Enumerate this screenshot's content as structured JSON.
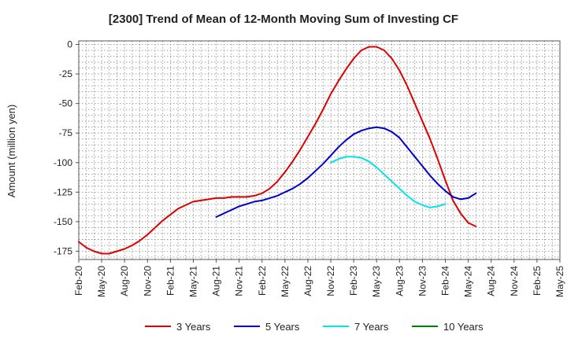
{
  "chart_data": {
    "type": "line",
    "title": "[2300]  Trend of Mean of 12-Month Moving Sum of Investing CF",
    "xlabel": "",
    "ylabel": "Amount (million yen)",
    "ylim": [
      -182,
      3
    ],
    "yticks": [
      0,
      -25,
      -50,
      -75,
      -100,
      -125,
      -150,
      -175
    ],
    "ytick_labels": [
      "0",
      "-25",
      "-50",
      "-75",
      "-100",
      "-125",
      "-150",
      "-175"
    ],
    "x_start_month_index": 0,
    "x_end_month_index": 63,
    "xtick_month_index": [
      0,
      3,
      6,
      9,
      12,
      15,
      18,
      21,
      24,
      27,
      30,
      33,
      36,
      39,
      42,
      45,
      48,
      51,
      54,
      57,
      60,
      63
    ],
    "xtick_labels": [
      "Feb-20",
      "May-20",
      "Aug-20",
      "Nov-20",
      "Feb-21",
      "May-21",
      "Aug-21",
      "Nov-21",
      "Feb-22",
      "May-22",
      "Aug-22",
      "Nov-22",
      "Feb-23",
      "May-23",
      "Aug-23",
      "Nov-23",
      "Feb-24",
      "May-24",
      "Aug-24",
      "Nov-24",
      "Feb-25",
      "May-25"
    ],
    "grid": true,
    "legend_position": "bottom",
    "series": [
      {
        "name": "3 Years",
        "color": "#dd0000",
        "points": [
          [
            0,
            -167
          ],
          [
            1,
            -172
          ],
          [
            2,
            -175
          ],
          [
            3,
            -177
          ],
          [
            4,
            -177
          ],
          [
            5,
            -175
          ],
          [
            6,
            -173
          ],
          [
            7,
            -170
          ],
          [
            8,
            -166
          ],
          [
            9,
            -161
          ],
          [
            10,
            -155
          ],
          [
            11,
            -149
          ],
          [
            12,
            -144
          ],
          [
            13,
            -139
          ],
          [
            14,
            -136
          ],
          [
            15,
            -133
          ],
          [
            16,
            -132
          ],
          [
            17,
            -131
          ],
          [
            18,
            -130
          ],
          [
            19,
            -130
          ],
          [
            20,
            -129
          ],
          [
            21,
            -129
          ],
          [
            22,
            -129
          ],
          [
            23,
            -128
          ],
          [
            24,
            -126
          ],
          [
            25,
            -122
          ],
          [
            26,
            -116
          ],
          [
            27,
            -108
          ],
          [
            28,
            -99
          ],
          [
            29,
            -89
          ],
          [
            30,
            -78
          ],
          [
            31,
            -67
          ],
          [
            32,
            -55
          ],
          [
            33,
            -42
          ],
          [
            34,
            -31
          ],
          [
            35,
            -21
          ],
          [
            36,
            -12
          ],
          [
            37,
            -5
          ],
          [
            38,
            -2
          ],
          [
            39,
            -2
          ],
          [
            40,
            -5
          ],
          [
            41,
            -12
          ],
          [
            42,
            -22
          ],
          [
            43,
            -35
          ],
          [
            44,
            -50
          ],
          [
            45,
            -65
          ],
          [
            46,
            -80
          ],
          [
            47,
            -97
          ],
          [
            48,
            -115
          ],
          [
            49,
            -132
          ],
          [
            50,
            -143
          ],
          [
            51,
            -151
          ],
          [
            52,
            -154
          ]
        ]
      },
      {
        "name": "5 Years",
        "color": "#0000cc",
        "points": [
          [
            18,
            -146
          ],
          [
            19,
            -143
          ],
          [
            20,
            -140
          ],
          [
            21,
            -137
          ],
          [
            22,
            -135
          ],
          [
            23,
            -133
          ],
          [
            24,
            -132
          ],
          [
            25,
            -130
          ],
          [
            26,
            -128
          ],
          [
            27,
            -125
          ],
          [
            28,
            -122
          ],
          [
            29,
            -118
          ],
          [
            30,
            -113
          ],
          [
            31,
            -107
          ],
          [
            32,
            -101
          ],
          [
            33,
            -94
          ],
          [
            34,
            -87
          ],
          [
            35,
            -81
          ],
          [
            36,
            -76
          ],
          [
            37,
            -73
          ],
          [
            38,
            -71
          ],
          [
            39,
            -70
          ],
          [
            40,
            -71
          ],
          [
            41,
            -74
          ],
          [
            42,
            -79
          ],
          [
            43,
            -87
          ],
          [
            44,
            -95
          ],
          [
            45,
            -103
          ],
          [
            46,
            -111
          ],
          [
            47,
            -118
          ],
          [
            48,
            -124
          ],
          [
            49,
            -129
          ],
          [
            50,
            -131
          ],
          [
            51,
            -130
          ],
          [
            52,
            -126
          ]
        ]
      },
      {
        "name": "7 Years",
        "color": "#00e5e5",
        "points": [
          [
            33,
            -100
          ],
          [
            34,
            -97
          ],
          [
            35,
            -95
          ],
          [
            36,
            -95
          ],
          [
            37,
            -96
          ],
          [
            38,
            -99
          ],
          [
            39,
            -104
          ],
          [
            40,
            -110
          ],
          [
            41,
            -116
          ],
          [
            42,
            -122
          ],
          [
            43,
            -128
          ],
          [
            44,
            -133
          ],
          [
            45,
            -136
          ],
          [
            46,
            -138
          ],
          [
            47,
            -137
          ],
          [
            48,
            -135
          ]
        ]
      },
      {
        "name": "10 Years",
        "color": "#008000",
        "points": []
      }
    ]
  }
}
